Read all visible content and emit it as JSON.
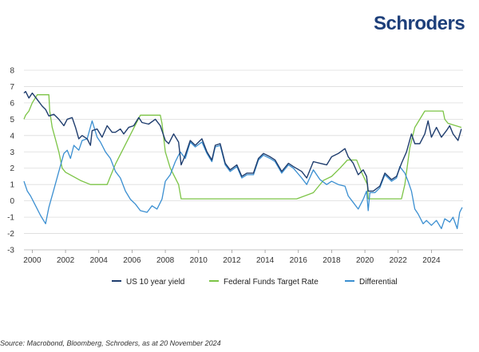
{
  "brand": "Schroders",
  "source_note": "Source: Macrobond, Bloomberg, Schroders, as at 20 November 2024",
  "chart_data": {
    "type": "line",
    "ylim": [
      -3,
      8
    ],
    "yticks": [
      "8",
      "7",
      "6",
      "5",
      "4",
      "3",
      "2",
      "1",
      "0",
      "-1",
      "-2",
      "-3"
    ],
    "xticks": [
      "2000",
      "2002",
      "2004",
      "2006",
      "2008",
      "2010",
      "2012",
      "2014",
      "2016",
      "2018",
      "2020",
      "2022",
      "2024"
    ],
    "xlim": [
      1999.5,
      2025.9
    ],
    "grid": true,
    "legend_position": "bottom",
    "series": [
      {
        "name": "US 10 year yield",
        "color": "#1f3d6e",
        "points": [
          [
            1999.5,
            6.6
          ],
          [
            1999.6,
            6.7
          ],
          [
            1999.8,
            6.3
          ],
          [
            2000.0,
            6.6
          ],
          [
            2000.3,
            6.2
          ],
          [
            2000.6,
            5.8
          ],
          [
            2000.8,
            5.6
          ],
          [
            2001.0,
            5.2
          ],
          [
            2001.3,
            5.3
          ],
          [
            2001.6,
            5.0
          ],
          [
            2001.9,
            4.6
          ],
          [
            2002.1,
            5.0
          ],
          [
            2002.4,
            5.1
          ],
          [
            2002.6,
            4.5
          ],
          [
            2002.8,
            3.8
          ],
          [
            2003.0,
            4.0
          ],
          [
            2003.3,
            3.8
          ],
          [
            2003.5,
            3.4
          ],
          [
            2003.6,
            4.3
          ],
          [
            2003.9,
            4.4
          ],
          [
            2004.2,
            3.9
          ],
          [
            2004.5,
            4.6
          ],
          [
            2004.8,
            4.2
          ],
          [
            2005.0,
            4.2
          ],
          [
            2005.3,
            4.4
          ],
          [
            2005.5,
            4.1
          ],
          [
            2005.8,
            4.5
          ],
          [
            2006.1,
            4.6
          ],
          [
            2006.4,
            5.1
          ],
          [
            2006.6,
            4.8
          ],
          [
            2007.0,
            4.7
          ],
          [
            2007.4,
            5.0
          ],
          [
            2007.7,
            4.6
          ],
          [
            2008.0,
            3.7
          ],
          [
            2008.2,
            3.5
          ],
          [
            2008.5,
            4.1
          ],
          [
            2008.8,
            3.6
          ],
          [
            2008.95,
            2.2
          ],
          [
            2009.2,
            2.8
          ],
          [
            2009.5,
            3.7
          ],
          [
            2009.8,
            3.4
          ],
          [
            2010.2,
            3.8
          ],
          [
            2010.5,
            3.0
          ],
          [
            2010.8,
            2.5
          ],
          [
            2011.0,
            3.4
          ],
          [
            2011.3,
            3.5
          ],
          [
            2011.6,
            2.3
          ],
          [
            2011.9,
            1.9
          ],
          [
            2012.3,
            2.2
          ],
          [
            2012.6,
            1.5
          ],
          [
            2012.9,
            1.7
          ],
          [
            2013.3,
            1.7
          ],
          [
            2013.6,
            2.6
          ],
          [
            2013.9,
            2.9
          ],
          [
            2014.3,
            2.7
          ],
          [
            2014.6,
            2.5
          ],
          [
            2015.0,
            1.8
          ],
          [
            2015.4,
            2.3
          ],
          [
            2015.7,
            2.1
          ],
          [
            2016.2,
            1.8
          ],
          [
            2016.5,
            1.4
          ],
          [
            2016.9,
            2.4
          ],
          [
            2017.3,
            2.3
          ],
          [
            2017.7,
            2.2
          ],
          [
            2018.0,
            2.7
          ],
          [
            2018.4,
            2.9
          ],
          [
            2018.8,
            3.2
          ],
          [
            2019.0,
            2.7
          ],
          [
            2019.3,
            2.3
          ],
          [
            2019.6,
            1.6
          ],
          [
            2019.9,
            1.9
          ],
          [
            2020.1,
            1.5
          ],
          [
            2020.2,
            0.6
          ],
          [
            2020.5,
            0.6
          ],
          [
            2020.9,
            0.9
          ],
          [
            2021.2,
            1.7
          ],
          [
            2021.6,
            1.3
          ],
          [
            2021.9,
            1.5
          ],
          [
            2022.2,
            2.3
          ],
          [
            2022.5,
            3.0
          ],
          [
            2022.8,
            4.1
          ],
          [
            2023.0,
            3.5
          ],
          [
            2023.3,
            3.5
          ],
          [
            2023.6,
            4.1
          ],
          [
            2023.8,
            4.9
          ],
          [
            2024.0,
            3.9
          ],
          [
            2024.3,
            4.5
          ],
          [
            2024.6,
            3.9
          ],
          [
            2024.9,
            4.3
          ],
          [
            2025.1,
            4.6
          ],
          [
            2025.3,
            4.1
          ],
          [
            2025.6,
            3.7
          ],
          [
            2025.8,
            4.4
          ]
        ]
      },
      {
        "name": "Federal Funds Target Rate",
        "color": "#7cc446",
        "points": [
          [
            1999.5,
            5.0
          ],
          [
            1999.6,
            5.25
          ],
          [
            1999.8,
            5.5
          ],
          [
            2000.0,
            6.0
          ],
          [
            2000.3,
            6.5
          ],
          [
            2001.0,
            6.5
          ],
          [
            2001.05,
            5.5
          ],
          [
            2001.2,
            4.5
          ],
          [
            2001.4,
            3.75
          ],
          [
            2001.6,
            3.0
          ],
          [
            2001.8,
            2.0
          ],
          [
            2002.0,
            1.75
          ],
          [
            2002.9,
            1.25
          ],
          [
            2003.5,
            1.0
          ],
          [
            2004.5,
            1.0
          ],
          [
            2004.7,
            1.5
          ],
          [
            2005.0,
            2.25
          ],
          [
            2005.5,
            3.25
          ],
          [
            2006.0,
            4.25
          ],
          [
            2006.5,
            5.25
          ],
          [
            2007.7,
            5.25
          ],
          [
            2007.8,
            4.75
          ],
          [
            2008.0,
            3.0
          ],
          [
            2008.3,
            2.0
          ],
          [
            2008.8,
            1.0
          ],
          [
            2008.95,
            0.125
          ],
          [
            2015.9,
            0.125
          ],
          [
            2016.9,
            0.5
          ],
          [
            2017.5,
            1.25
          ],
          [
            2018.0,
            1.5
          ],
          [
            2018.5,
            2.0
          ],
          [
            2018.95,
            2.5
          ],
          [
            2019.5,
            2.5
          ],
          [
            2019.8,
            1.75
          ],
          [
            2020.15,
            1.0
          ],
          [
            2020.2,
            0.125
          ],
          [
            2022.2,
            0.125
          ],
          [
            2022.4,
            1.0
          ],
          [
            2022.7,
            3.25
          ],
          [
            2023.0,
            4.5
          ],
          [
            2023.6,
            5.5
          ],
          [
            2024.7,
            5.5
          ],
          [
            2024.8,
            5.0
          ],
          [
            2025.0,
            4.75
          ],
          [
            2025.8,
            4.5
          ]
        ]
      },
      {
        "name": "Differential",
        "color": "#3b8fd1",
        "points": [
          [
            1999.5,
            1.2
          ],
          [
            1999.7,
            0.6
          ],
          [
            1999.9,
            0.3
          ],
          [
            2000.2,
            -0.3
          ],
          [
            2000.5,
            -0.9
          ],
          [
            2000.8,
            -1.4
          ],
          [
            2001.0,
            -0.4
          ],
          [
            2001.3,
            0.7
          ],
          [
            2001.6,
            1.8
          ],
          [
            2001.9,
            2.9
          ],
          [
            2002.1,
            3.1
          ],
          [
            2002.3,
            2.6
          ],
          [
            2002.5,
            3.4
          ],
          [
            2002.8,
            3.1
          ],
          [
            2003.0,
            3.7
          ],
          [
            2003.3,
            3.8
          ],
          [
            2003.6,
            4.9
          ],
          [
            2003.9,
            3.9
          ],
          [
            2004.1,
            3.6
          ],
          [
            2004.4,
            3.0
          ],
          [
            2004.7,
            2.6
          ],
          [
            2005.0,
            1.8
          ],
          [
            2005.3,
            1.4
          ],
          [
            2005.6,
            0.6
          ],
          [
            2005.9,
            0.1
          ],
          [
            2006.2,
            -0.2
          ],
          [
            2006.5,
            -0.6
          ],
          [
            2006.9,
            -0.7
          ],
          [
            2007.2,
            -0.3
          ],
          [
            2007.5,
            -0.5
          ],
          [
            2007.8,
            0.1
          ],
          [
            2008.0,
            1.2
          ],
          [
            2008.3,
            1.6
          ],
          [
            2008.6,
            2.4
          ],
          [
            2008.9,
            3.0
          ],
          [
            2009.2,
            2.6
          ],
          [
            2009.5,
            3.6
          ],
          [
            2009.8,
            3.3
          ],
          [
            2010.2,
            3.6
          ],
          [
            2010.5,
            2.9
          ],
          [
            2010.8,
            2.4
          ],
          [
            2011.0,
            3.3
          ],
          [
            2011.3,
            3.4
          ],
          [
            2011.6,
            2.2
          ],
          [
            2011.9,
            1.8
          ],
          [
            2012.3,
            2.1
          ],
          [
            2012.6,
            1.4
          ],
          [
            2012.9,
            1.6
          ],
          [
            2013.3,
            1.6
          ],
          [
            2013.6,
            2.5
          ],
          [
            2013.9,
            2.8
          ],
          [
            2014.3,
            2.6
          ],
          [
            2014.6,
            2.4
          ],
          [
            2015.0,
            1.7
          ],
          [
            2015.4,
            2.2
          ],
          [
            2015.7,
            2.0
          ],
          [
            2016.2,
            1.4
          ],
          [
            2016.5,
            1.0
          ],
          [
            2016.9,
            1.9
          ],
          [
            2017.3,
            1.3
          ],
          [
            2017.7,
            1.0
          ],
          [
            2018.0,
            1.2
          ],
          [
            2018.4,
            1.0
          ],
          [
            2018.8,
            0.9
          ],
          [
            2019.0,
            0.3
          ],
          [
            2019.3,
            -0.1
          ],
          [
            2019.6,
            -0.5
          ],
          [
            2019.9,
            0.1
          ],
          [
            2020.1,
            0.6
          ],
          [
            2020.2,
            -0.6
          ],
          [
            2020.3,
            0.5
          ],
          [
            2020.6,
            0.5
          ],
          [
            2020.9,
            0.8
          ],
          [
            2021.2,
            1.6
          ],
          [
            2021.6,
            1.2
          ],
          [
            2021.9,
            1.4
          ],
          [
            2022.1,
            2.1
          ],
          [
            2022.4,
            1.7
          ],
          [
            2022.6,
            1.2
          ],
          [
            2022.8,
            0.6
          ],
          [
            2023.0,
            -0.5
          ],
          [
            2023.2,
            -0.8
          ],
          [
            2023.5,
            -1.4
          ],
          [
            2023.7,
            -1.2
          ],
          [
            2024.0,
            -1.5
          ],
          [
            2024.3,
            -1.2
          ],
          [
            2024.6,
            -1.7
          ],
          [
            2024.8,
            -1.1
          ],
          [
            2025.1,
            -1.3
          ],
          [
            2025.3,
            -1.0
          ],
          [
            2025.55,
            -1.7
          ],
          [
            2025.7,
            -0.7
          ],
          [
            2025.85,
            -0.4
          ]
        ]
      }
    ]
  }
}
